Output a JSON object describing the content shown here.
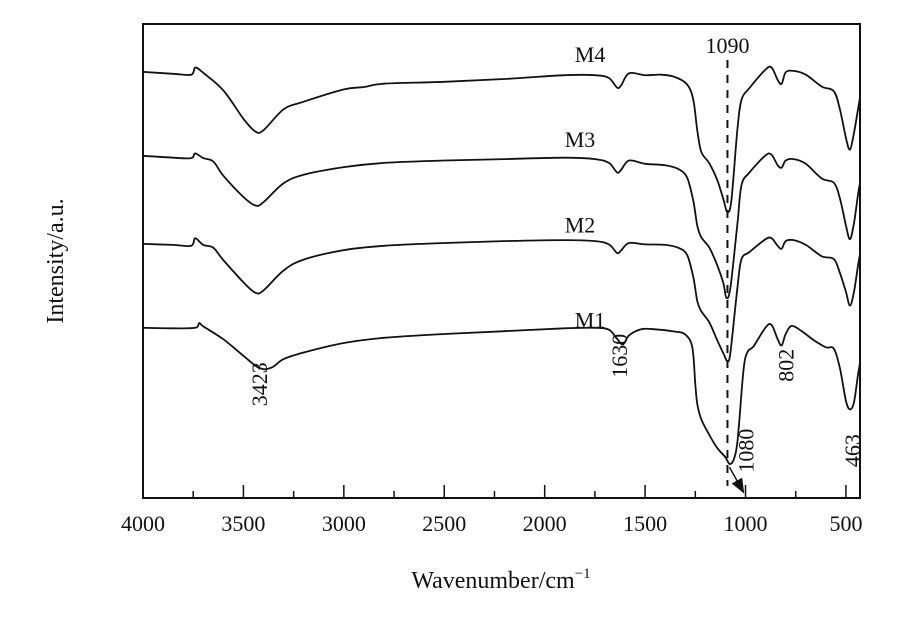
{
  "chart_data": {
    "type": "line",
    "title": "",
    "xlabel": "Wavenumber/cm",
    "xlabel_sup": "−1",
    "ylabel": "Intensity/a.u.",
    "xlim": [
      4000,
      430
    ],
    "ylim": [
      0,
      100
    ],
    "x_reversed": true,
    "xticks": [
      4000,
      3500,
      3000,
      2500,
      2000,
      1500,
      1000,
      500
    ],
    "xtick_labels": [
      "4000",
      "3500",
      "3000",
      "2500",
      "2000",
      "1500",
      "1000",
      "500"
    ],
    "minor_xticks": [
      3750,
      3250,
      2750,
      2250,
      1750,
      1250,
      750
    ],
    "grid": false,
    "line_color": "#111111",
    "series": [
      {
        "name": "M4",
        "label": "M4",
        "label_at": [
          1850,
          92
        ],
        "points": [
          [
            4000,
            89.9
          ],
          [
            3850,
            89.5
          ],
          [
            3760,
            89.3
          ],
          [
            3740,
            90.8
          ],
          [
            3700,
            89.7
          ],
          [
            3600,
            86
          ],
          [
            3500,
            80
          ],
          [
            3440,
            77.3
          ],
          [
            3400,
            77.6
          ],
          [
            3300,
            82
          ],
          [
            3200,
            83.6
          ],
          [
            3000,
            86.2
          ],
          [
            2900,
            86.7
          ],
          [
            2800,
            87.4
          ],
          [
            2500,
            87.8
          ],
          [
            2200,
            88.4
          ],
          [
            1900,
            89.2
          ],
          [
            1750,
            89.2
          ],
          [
            1680,
            88.6
          ],
          [
            1640,
            86.6
          ],
          [
            1620,
            87
          ],
          [
            1580,
            89.6
          ],
          [
            1500,
            89.2
          ],
          [
            1420,
            89.3
          ],
          [
            1350,
            88.8
          ],
          [
            1290,
            87.2
          ],
          [
            1260,
            84
          ],
          [
            1240,
            77.5
          ],
          [
            1220,
            73
          ],
          [
            1180,
            70.6
          ],
          [
            1140,
            67
          ],
          [
            1110,
            63
          ],
          [
            1090,
            60.3
          ],
          [
            1070,
            63
          ],
          [
            1040,
            78
          ],
          [
            1020,
            84
          ],
          [
            980,
            86.5
          ],
          [
            900,
            90.4
          ],
          [
            870,
            90.8
          ],
          [
            840,
            88.2
          ],
          [
            820,
            87.4
          ],
          [
            800,
            89.8
          ],
          [
            760,
            90.1
          ],
          [
            700,
            89.3
          ],
          [
            620,
            86.8
          ],
          [
            560,
            85.8
          ],
          [
            530,
            82
          ],
          [
            500,
            76
          ],
          [
            480,
            73.5
          ],
          [
            460,
            77
          ],
          [
            440,
            82
          ],
          [
            430,
            84.5
          ]
        ]
      },
      {
        "name": "M3",
        "label": "M3",
        "label_at": [
          1900,
          74
        ],
        "points": [
          [
            4000,
            72.2
          ],
          [
            3850,
            71.8
          ],
          [
            3760,
            71.7
          ],
          [
            3740,
            72.7
          ],
          [
            3700,
            71.7
          ],
          [
            3650,
            71
          ],
          [
            3600,
            68
          ],
          [
            3500,
            63.5
          ],
          [
            3440,
            61.7
          ],
          [
            3400,
            62.4
          ],
          [
            3300,
            66.4
          ],
          [
            3200,
            68.2
          ],
          [
            3000,
            69.8
          ],
          [
            2800,
            70.7
          ],
          [
            2500,
            71.2
          ],
          [
            2200,
            71.5
          ],
          [
            1900,
            71.8
          ],
          [
            1750,
            71.5
          ],
          [
            1680,
            70.7
          ],
          [
            1640,
            68.7
          ],
          [
            1620,
            69.2
          ],
          [
            1580,
            71.2
          ],
          [
            1500,
            70.5
          ],
          [
            1400,
            70.2
          ],
          [
            1330,
            69.3
          ],
          [
            1290,
            67.5
          ],
          [
            1260,
            62.7
          ],
          [
            1240,
            57.4
          ],
          [
            1220,
            55
          ],
          [
            1180,
            52.8
          ],
          [
            1140,
            49
          ],
          [
            1110,
            45.3
          ],
          [
            1095,
            42.2
          ],
          [
            1075,
            44.5
          ],
          [
            1040,
            58
          ],
          [
            1020,
            66
          ],
          [
            980,
            68.7
          ],
          [
            900,
            72.3
          ],
          [
            870,
            72.4
          ],
          [
            840,
            70.2
          ],
          [
            820,
            69.7
          ],
          [
            800,
            71.2
          ],
          [
            760,
            71.5
          ],
          [
            700,
            70.5
          ],
          [
            620,
            67.4
          ],
          [
            560,
            66.5
          ],
          [
            530,
            63.2
          ],
          [
            500,
            57.5
          ],
          [
            480,
            54.6
          ],
          [
            460,
            58
          ],
          [
            440,
            64
          ],
          [
            430,
            66.5
          ]
        ]
      },
      {
        "name": "M2",
        "label": "M2",
        "label_at": [
          1900,
          56
        ],
        "points": [
          [
            4000,
            53.6
          ],
          [
            3850,
            53.4
          ],
          [
            3760,
            53.2
          ],
          [
            3740,
            54.8
          ],
          [
            3700,
            53.4
          ],
          [
            3650,
            52.8
          ],
          [
            3600,
            50.2
          ],
          [
            3500,
            45.5
          ],
          [
            3440,
            43.3
          ],
          [
            3400,
            43.8
          ],
          [
            3300,
            48
          ],
          [
            3200,
            50.3
          ],
          [
            3000,
            52.3
          ],
          [
            2800,
            53.2
          ],
          [
            2500,
            53.8
          ],
          [
            2200,
            54.2
          ],
          [
            1900,
            54.4
          ],
          [
            1750,
            54.2
          ],
          [
            1680,
            53.5
          ],
          [
            1640,
            51.7
          ],
          [
            1620,
            52.2
          ],
          [
            1580,
            53.8
          ],
          [
            1500,
            53.5
          ],
          [
            1400,
            53.4
          ],
          [
            1330,
            52.7
          ],
          [
            1290,
            51.2
          ],
          [
            1260,
            46.6
          ],
          [
            1240,
            41.5
          ],
          [
            1220,
            39.4
          ],
          [
            1180,
            37
          ],
          [
            1140,
            33.2
          ],
          [
            1110,
            30.5
          ],
          [
            1090,
            28.9
          ],
          [
            1075,
            30.8
          ],
          [
            1040,
            44.5
          ],
          [
            1020,
            50.4
          ],
          [
            980,
            51.9
          ],
          [
            900,
            54.6
          ],
          [
            870,
            54.8
          ],
          [
            840,
            53.2
          ],
          [
            820,
            52.6
          ],
          [
            800,
            54.2
          ],
          [
            760,
            54.4
          ],
          [
            700,
            53.4
          ],
          [
            620,
            51
          ],
          [
            560,
            50.4
          ],
          [
            530,
            47.5
          ],
          [
            500,
            43.5
          ],
          [
            480,
            40.6
          ],
          [
            460,
            43.5
          ],
          [
            440,
            49
          ],
          [
            430,
            51.5
          ]
        ]
      },
      {
        "name": "M1",
        "label": "M1",
        "label_at": [
          1850,
          36
        ],
        "points": [
          [
            4000,
            35.9
          ],
          [
            3850,
            35.8
          ],
          [
            3740,
            35.9
          ],
          [
            3720,
            36.9
          ],
          [
            3700,
            36.2
          ],
          [
            3600,
            33.5
          ],
          [
            3500,
            30
          ],
          [
            3420,
            27.4
          ],
          [
            3360,
            27.5
          ],
          [
            3300,
            29.3
          ],
          [
            3200,
            30.7
          ],
          [
            3000,
            32.7
          ],
          [
            2800,
            33.8
          ],
          [
            2500,
            34.6
          ],
          [
            2200,
            35.2
          ],
          [
            1900,
            35.8
          ],
          [
            1750,
            35.9
          ],
          [
            1680,
            35.5
          ],
          [
            1640,
            33.6
          ],
          [
            1610,
            32.4
          ],
          [
            1580,
            34.3
          ],
          [
            1520,
            35.6
          ],
          [
            1450,
            35.6
          ],
          [
            1350,
            35.1
          ],
          [
            1300,
            34.5
          ],
          [
            1265,
            31.8
          ],
          [
            1250,
            24
          ],
          [
            1240,
            19.8
          ],
          [
            1220,
            16.6
          ],
          [
            1180,
            13.3
          ],
          [
            1140,
            10.5
          ],
          [
            1100,
            8.6
          ],
          [
            1080,
            7.2
          ],
          [
            1060,
            8
          ],
          [
            1040,
            12
          ],
          [
            1010,
            27
          ],
          [
            990,
            30.8
          ],
          [
            960,
            32
          ],
          [
            900,
            36
          ],
          [
            870,
            36.5
          ],
          [
            840,
            33.5
          ],
          [
            820,
            32.2
          ],
          [
            800,
            34.6
          ],
          [
            770,
            36.3
          ],
          [
            720,
            35.2
          ],
          [
            660,
            33.3
          ],
          [
            600,
            31.8
          ],
          [
            560,
            31.5
          ],
          [
            530,
            27.4
          ],
          [
            500,
            20.5
          ],
          [
            480,
            18.7
          ],
          [
            460,
            20.2
          ],
          [
            440,
            26
          ],
          [
            430,
            28.5
          ]
        ]
      }
    ],
    "reference_line": {
      "x": 1090,
      "style": "dashed",
      "label": "1090"
    },
    "annotations": [
      {
        "text": "3423",
        "x": 3423,
        "y": 24,
        "rotation": -90
      },
      {
        "text": "1630",
        "x": 1630,
        "y": 30,
        "rotation": -90
      },
      {
        "text": "802",
        "x": 802,
        "y": 28,
        "rotation": -90
      },
      {
        "text": "1080",
        "x": 1000,
        "y": 10,
        "rotation": -90,
        "arrow_from": [
          1080,
          6.5
        ],
        "arrow_to": [
          1010,
          1.2
        ]
      },
      {
        "text": "463",
        "x": 470,
        "y": 10,
        "rotation": -90
      }
    ]
  }
}
